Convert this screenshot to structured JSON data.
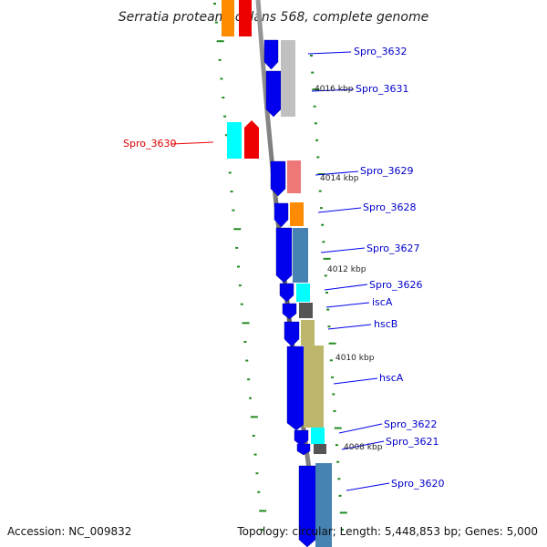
{
  "title": "Serratia proteamaculans 568, complete genome",
  "accession": "Accession: NC_009832",
  "summary": "Topology: circular; Length: 5,448,853 bp; Genes: 5,000",
  "genes": [
    {
      "name": "Spro_3632",
      "color": "#0000cc"
    },
    {
      "name": "Spro_3631",
      "color": "#0000cc"
    },
    {
      "name": "Spro_3630",
      "color": "#dd0000"
    },
    {
      "name": "Spro_3629",
      "color": "#0000cc"
    },
    {
      "name": "Spro_3628",
      "color": "#0000cc"
    },
    {
      "name": "Spro_3627",
      "color": "#0000cc"
    },
    {
      "name": "Spro_3626",
      "color": "#0000cc"
    },
    {
      "name": "iscA",
      "color": "#0000cc"
    },
    {
      "name": "hscB",
      "color": "#0000cc"
    },
    {
      "name": "hscA",
      "color": "#0000cc"
    },
    {
      "name": "Spro_3622",
      "color": "#0000cc"
    },
    {
      "name": "Spro_3621",
      "color": "#0000cc"
    },
    {
      "name": "Spro_3620",
      "color": "#0000cc"
    }
  ],
  "positions": [
    "4016 kbp",
    "4014 kbp",
    "4012 kbp",
    "4010 kbp",
    "4008 kbp"
  ],
  "colors": {
    "blue": "#0000ee",
    "gray": "#c0c0c0",
    "pink": "#ee7777",
    "orange": "#ff8c00",
    "steel": "#4682b4",
    "cyan": "#00ffff",
    "dark": "#555555",
    "khaki": "#bdb76b",
    "red": "#ee0000",
    "tick": "#228b22"
  }
}
